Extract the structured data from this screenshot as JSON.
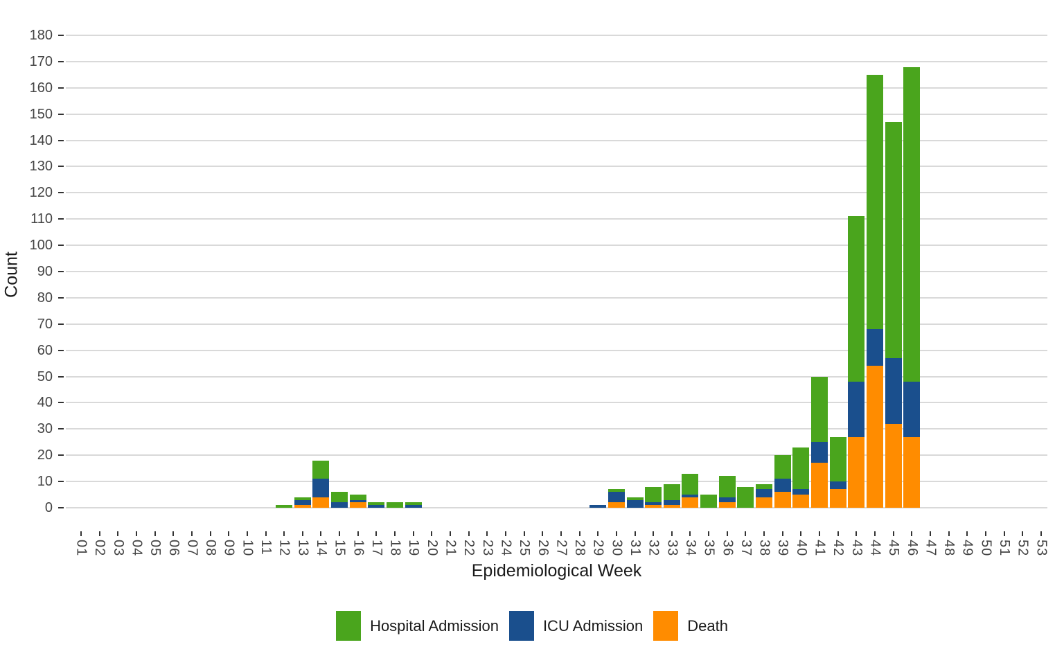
{
  "chart_data": {
    "type": "bar",
    "stacked": true,
    "title": "",
    "xlabel": "Epidemiological Week",
    "ylabel": "Count",
    "ylim": [
      0,
      180
    ],
    "ytick_step": 10,
    "grid": true,
    "grid_color": "#D9D9D9",
    "background_color": "#FFFFFF",
    "legend_position": "bottom",
    "categories": [
      "01",
      "02",
      "03",
      "04",
      "05",
      "06",
      "07",
      "08",
      "09",
      "10",
      "11",
      "12",
      "13",
      "14",
      "15",
      "16",
      "17",
      "18",
      "19",
      "20",
      "21",
      "22",
      "23",
      "24",
      "25",
      "26",
      "27",
      "28",
      "29",
      "30",
      "31",
      "32",
      "33",
      "34",
      "35",
      "36",
      "37",
      "38",
      "39",
      "40",
      "41",
      "42",
      "43",
      "44",
      "45",
      "46",
      "47",
      "48",
      "49",
      "50",
      "51",
      "52",
      "53"
    ],
    "series": [
      {
        "name": "Hospital Admission",
        "color": "#4AA51D",
        "values": [
          0,
          0,
          0,
          0,
          0,
          0,
          0,
          0,
          0,
          0,
          0,
          1,
          1,
          7,
          4,
          2,
          1,
          2,
          1,
          0,
          0,
          0,
          0,
          0,
          0,
          0,
          0,
          0,
          0,
          1,
          1,
          6,
          6,
          8,
          5,
          8,
          8,
          2,
          9,
          16,
          25,
          17,
          63,
          97,
          90,
          120,
          0,
          0,
          0,
          0,
          0,
          0,
          0
        ]
      },
      {
        "name": "ICU Admission",
        "color": "#1A4F8D",
        "values": [
          0,
          0,
          0,
          0,
          0,
          0,
          0,
          0,
          0,
          0,
          0,
          0,
          2,
          7,
          2,
          1,
          1,
          0,
          1,
          0,
          0,
          0,
          0,
          0,
          0,
          0,
          0,
          0,
          1,
          4,
          3,
          1,
          2,
          1,
          0,
          2,
          0,
          3,
          5,
          2,
          8,
          3,
          21,
          14,
          25,
          21,
          0,
          0,
          0,
          0,
          0,
          0,
          0
        ]
      },
      {
        "name": "Death",
        "color": "#FF8C00",
        "values": [
          0,
          0,
          0,
          0,
          0,
          0,
          0,
          0,
          0,
          0,
          0,
          0,
          1,
          4,
          0,
          2,
          0,
          0,
          0,
          0,
          0,
          0,
          0,
          0,
          0,
          0,
          0,
          0,
          0,
          2,
          0,
          1,
          1,
          4,
          0,
          2,
          0,
          4,
          6,
          5,
          17,
          7,
          27,
          54,
          32,
          27,
          0,
          0,
          0,
          0,
          0,
          0,
          0
        ]
      }
    ]
  }
}
